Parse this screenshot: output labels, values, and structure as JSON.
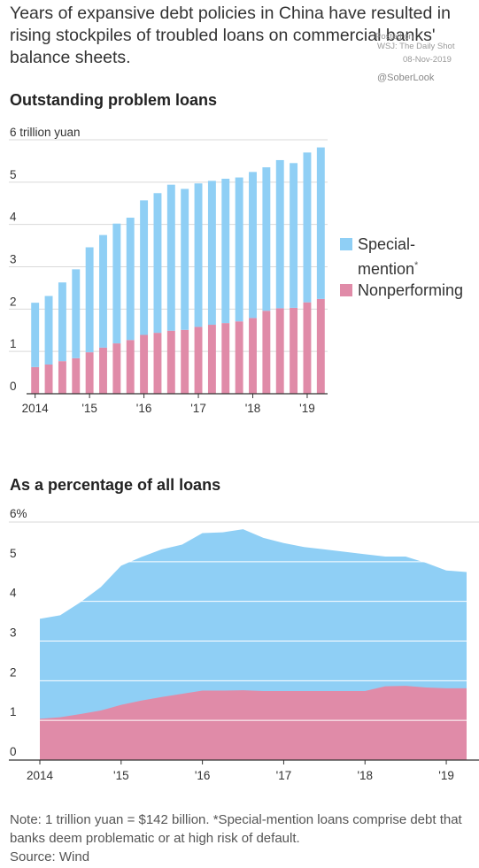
{
  "headline": "Years of expansive debt policies in China have resulted in rising stockpiles of troubled loans on commercial banks' balance sheets.",
  "watermark": {
    "posted": "Posted on",
    "source": "WSJ: The Daily Shot",
    "date": "08-Nov-2019",
    "handle": "@SoberLook"
  },
  "legend": {
    "special": {
      "label": "Special-",
      "label2": "mention",
      "mark": "*",
      "color": "#8fcff5"
    },
    "nonperforming": {
      "label": "Nonperforming",
      "color": "#e08ba8"
    }
  },
  "footnote": {
    "note": "Note: 1 trillion yuan = $142 billion. *Special-mention loans comprise debt that banks deem problematic or at high risk of default.",
    "source": "Source: Wind"
  },
  "chart_data": [
    {
      "type": "bar",
      "stacked": true,
      "title": "Outstanding problem loans",
      "ylabel": "6 trillion yuan",
      "ylim": [
        0,
        6
      ],
      "yticks": [
        "0",
        "1",
        "2",
        "3",
        "4",
        "5",
        "6 trillion yuan"
      ],
      "xtick_labels": [
        "2014",
        "'15",
        "'16",
        "'17",
        "'18",
        "'19"
      ],
      "xtick_index": [
        0,
        4,
        8,
        12,
        16,
        20
      ],
      "grid": true,
      "legend_position": "right",
      "categories": [
        "2014Q1",
        "2014Q2",
        "2014Q3",
        "2014Q4",
        "2015Q1",
        "2015Q2",
        "2015Q3",
        "2015Q4",
        "2016Q1",
        "2016Q2",
        "2016Q3",
        "2016Q4",
        "2017Q1",
        "2017Q2",
        "2017Q3",
        "2017Q4",
        "2018Q1",
        "2018Q2",
        "2018Q3",
        "2018Q4",
        "2019Q1",
        "2019Q2"
      ],
      "series": [
        {
          "name": "Nonperforming",
          "color": "#e08ba8",
          "values": [
            0.63,
            0.69,
            0.77,
            0.84,
            0.98,
            1.09,
            1.19,
            1.27,
            1.39,
            1.44,
            1.49,
            1.51,
            1.58,
            1.63,
            1.67,
            1.71,
            1.79,
            1.96,
            2.02,
            2.03,
            2.16,
            2.24
          ]
        },
        {
          "name": "Special-mention",
          "color": "#8fcff5",
          "values": [
            1.52,
            1.62,
            1.86,
            2.1,
            2.48,
            2.66,
            2.83,
            2.89,
            3.18,
            3.3,
            3.45,
            3.33,
            3.39,
            3.4,
            3.41,
            3.4,
            3.45,
            3.39,
            3.5,
            3.42,
            3.54,
            3.58
          ]
        }
      ]
    },
    {
      "type": "area",
      "stacked": true,
      "title": "As a percentage of all loans",
      "ylim": [
        0,
        6
      ],
      "yticks": [
        "0",
        "1",
        "2",
        "3",
        "4",
        "5",
        "6%"
      ],
      "xtick_labels": [
        "2014",
        "'15",
        "'16",
        "'17",
        "'18",
        "'19"
      ],
      "xtick_index": [
        0,
        4,
        8,
        12,
        16,
        20
      ],
      "grid": true,
      "x": [
        "2014Q1",
        "2014Q2",
        "2014Q3",
        "2014Q4",
        "2015Q1",
        "2015Q2",
        "2015Q3",
        "2015Q4",
        "2016Q1",
        "2016Q2",
        "2016Q3",
        "2016Q4",
        "2017Q1",
        "2017Q2",
        "2017Q3",
        "2017Q4",
        "2018Q1",
        "2018Q2",
        "2018Q3",
        "2018Q4",
        "2019Q1",
        "2019Q2"
      ],
      "series": [
        {
          "name": "Nonperforming",
          "color": "#e08ba8",
          "values": [
            1.04,
            1.08,
            1.16,
            1.25,
            1.39,
            1.5,
            1.59,
            1.67,
            1.75,
            1.75,
            1.76,
            1.74,
            1.74,
            1.74,
            1.74,
            1.74,
            1.74,
            1.86,
            1.87,
            1.83,
            1.81,
            1.81
          ]
        },
        {
          "name": "Special-mention",
          "color": "#8fcff5",
          "values": [
            2.52,
            2.57,
            2.82,
            3.11,
            3.51,
            3.62,
            3.72,
            3.76,
            3.97,
            3.99,
            4.06,
            3.86,
            3.73,
            3.63,
            3.57,
            3.51,
            3.45,
            3.27,
            3.26,
            3.14,
            2.97,
            2.93
          ]
        }
      ]
    }
  ]
}
